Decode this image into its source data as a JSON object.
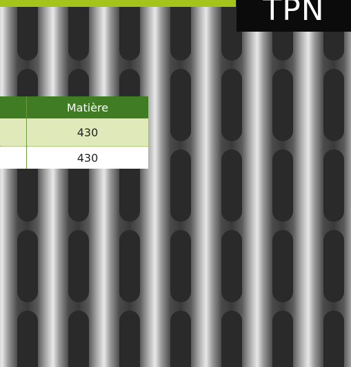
{
  "badge": "TPN",
  "table": {
    "header": [
      "Matière"
    ],
    "rows": [
      [
        "430"
      ],
      [
        "430"
      ]
    ]
  }
}
